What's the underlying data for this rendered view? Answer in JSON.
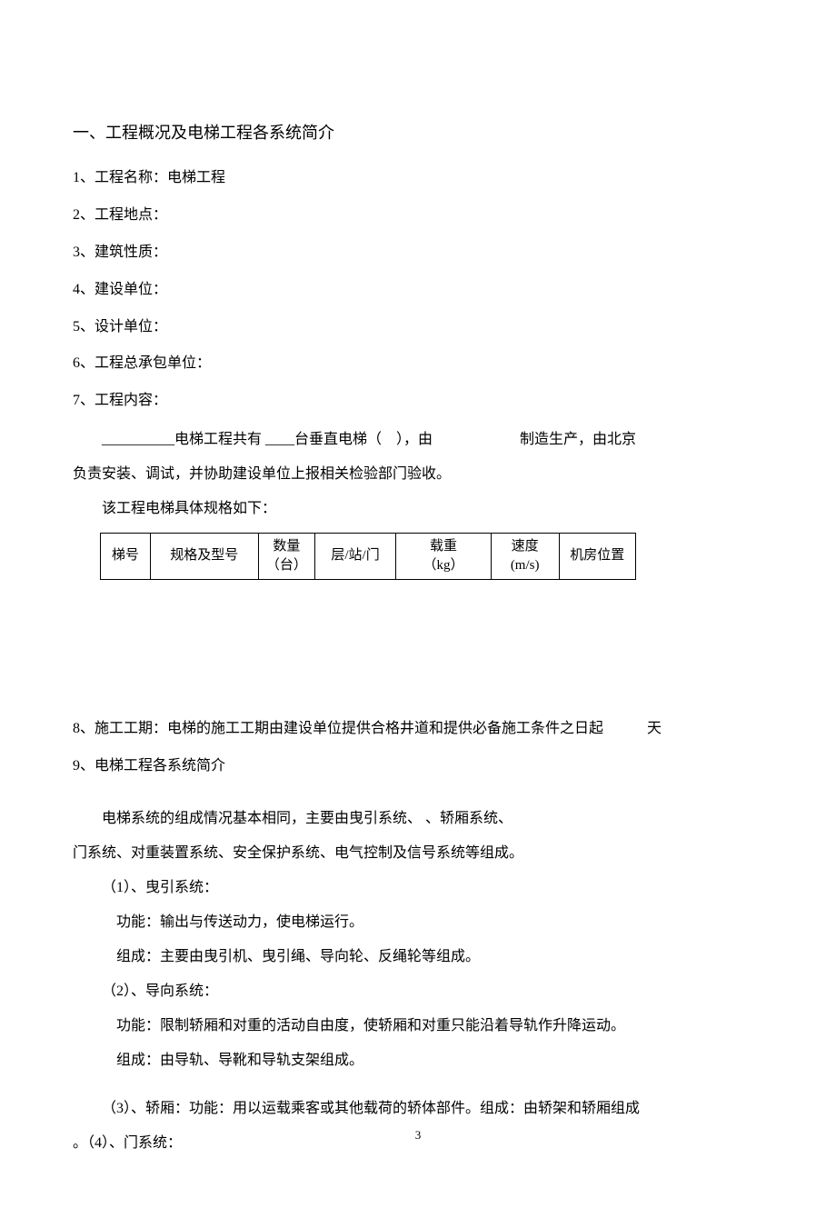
{
  "heading": "一、工程概况及电梯工程各系统简介",
  "items": {
    "i1": "1、工程名称：电梯工程",
    "i2": "2、工程地点：",
    "i3": "3、建筑性质：",
    "i4": "4、建设单位：",
    "i5": "5、设计单位：",
    "i6": "6、工程总承包单位：",
    "i7": "7、工程内容：",
    "i7_detail1": "__________电梯工程共有 ____台垂直电梯（　），由　　　　　　制造生产，由北京",
    "i7_detail2": "负责安装、调试，并协助建设单位上报相关检验部门验收。",
    "i7_detail3": "该工程电梯具体规格如下：",
    "i8": "8、施工工期：电梯的施工工期由建设单位提供合格井道和提供必备施工条件之日起　　　天",
    "i9": "9、电梯工程各系统简介",
    "i9_p1": "电梯系统的组成情况基本相同，主要由曳引系统、 、轿厢系统、",
    "i9_p2": "门系统、对重装置系统、安全保护系统、电气控制及信号系统等组成。",
    "s1_title": "（1）、曳引系统：",
    "s1_func": "功能：输出与传送动力，使电梯运行。",
    "s1_comp": "组成：主要由曳引机、曳引绳、导向轮、反绳轮等组成。",
    "s2_title": "（2）、导向系统：",
    "s2_func": "功能：限制轿厢和对重的活动自由度，使轿厢和对重只能沿着导轨作升降运动。",
    "s2_comp": "组成：由导轨、导靴和导轨支架组成。",
    "s3_text": "（3）、轿厢：功能：用以运载乘客或其他载荷的轿体部件。组成：由轿架和轿厢组成",
    "s4_title": "。（4）、门系统："
  },
  "table": {
    "headers": [
      "梯号",
      "规格及型号",
      "数量\n（台）",
      "层/站/门",
      "载重\n（kg）",
      "速度\n(m/s)",
      "机房位置"
    ]
  },
  "page_number": "3",
  "colors": {
    "text": "#000000",
    "background": "#ffffff",
    "border": "#000000"
  },
  "fonts": {
    "body_family": "SimSun",
    "body_size": 16,
    "heading_size": 18,
    "table_size": 15,
    "page_num_size": 13
  }
}
